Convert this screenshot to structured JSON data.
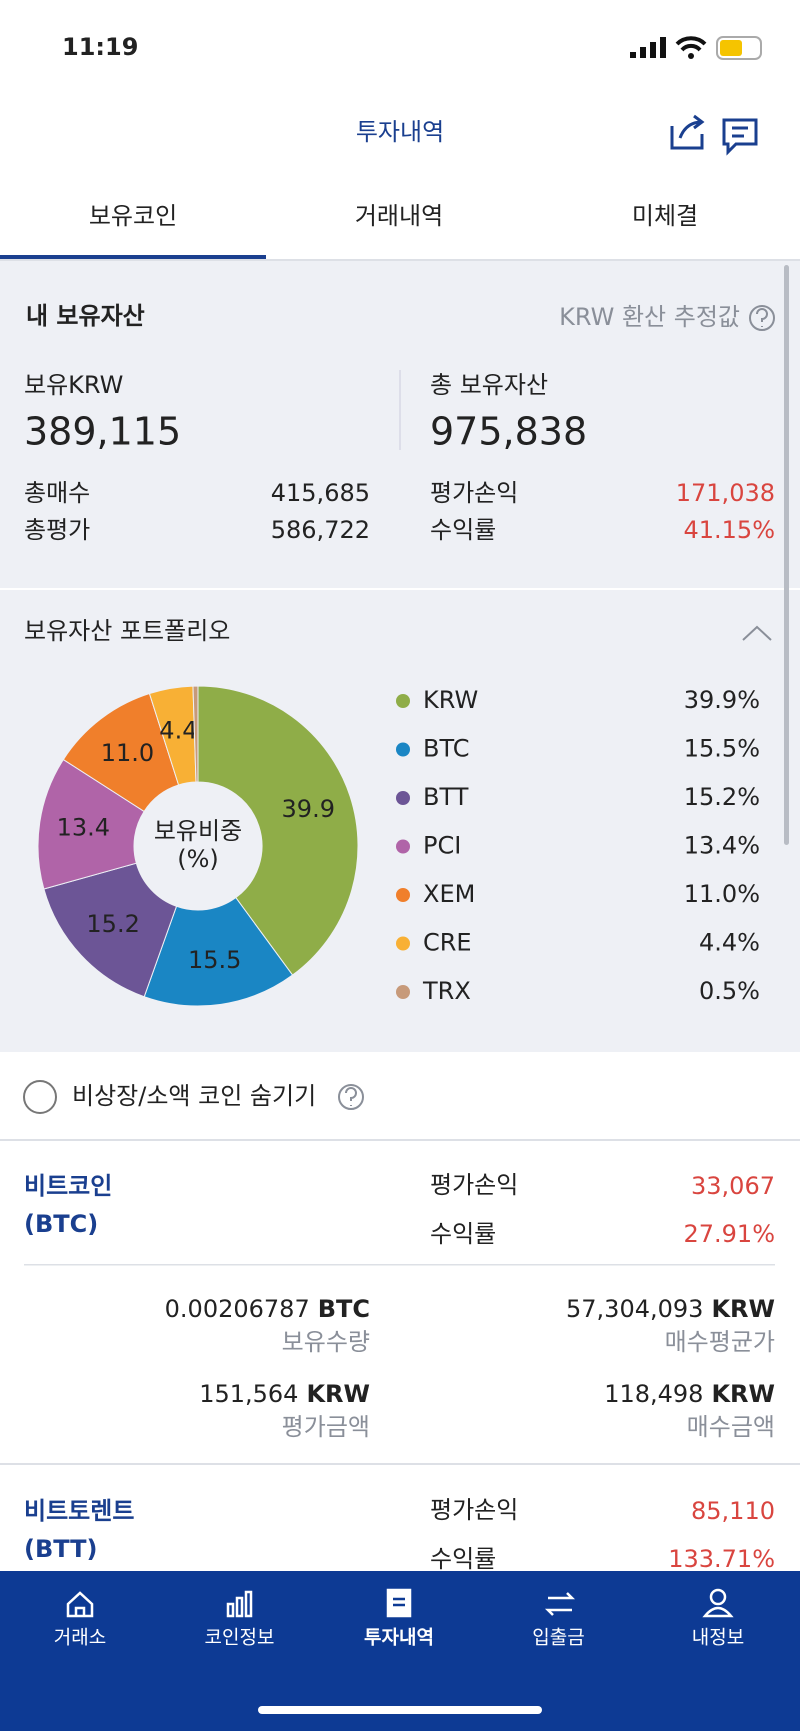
{
  "status_bar": {
    "time": "11:19"
  },
  "header": {
    "title": "투자내역"
  },
  "tabs": [
    "보유코인",
    "거래내역",
    "미체결"
  ],
  "summary": {
    "title": "내 보유자산",
    "note": "KRW 환산 추정값",
    "krw_label": "보유KRW",
    "krw_value": "389,115",
    "total_label": "총 보유자산",
    "total_value": "975,838",
    "rows_left": [
      [
        "총매수",
        "415,685"
      ],
      [
        "총평가",
        "586,722"
      ]
    ],
    "rows_right": [
      [
        "평가손익",
        "171,038"
      ],
      [
        "수익률",
        "41.15%"
      ]
    ]
  },
  "chart_data": {
    "type": "pie",
    "title": "보유자산 포트폴리오",
    "center_label": [
      "보유비중",
      "(%)"
    ],
    "categories": [
      "KRW",
      "BTC",
      "BTT",
      "PCI",
      "XEM",
      "CRE",
      "TRX"
    ],
    "values": [
      39.9,
      15.5,
      15.2,
      13.4,
      11.0,
      4.4,
      0.5
    ],
    "value_labels": [
      "39.9%",
      "15.5%",
      "15.2%",
      "13.4%",
      "11.0%",
      "4.4%",
      "0.5%"
    ],
    "slice_labels": [
      "39.9",
      "15.5",
      "15.2",
      "13.4",
      "11.0",
      "4.4",
      null
    ],
    "colors": [
      "#8fad48",
      "#1a86c4",
      "#6c5596",
      "#b064a8",
      "#f07f2b",
      "#f8b035",
      "#c79a7a"
    ]
  },
  "filter": {
    "label": "비상장/소액 코인 숨기기"
  },
  "coins": [
    {
      "name": "비트코인",
      "symbol": "(BTC)",
      "pl_label": "평가손익",
      "pl": "33,067",
      "rate_label": "수익률",
      "rate": "27.91%",
      "qty": "0.00206787",
      "qty_unit": "BTC",
      "qty_label": "보유수량",
      "avg": "57,304,093",
      "avg_unit": "KRW",
      "avg_label": "매수평균가",
      "eval": "151,564",
      "eval_unit": "KRW",
      "eval_label": "평가금액",
      "buy": "118,498",
      "buy_unit": "KRW",
      "buy_label": "매수금액"
    },
    {
      "name": "비트토렌트",
      "symbol": "(BTT)",
      "pl_label": "평가손익",
      "pl": "85,110",
      "rate_label": "수익률",
      "rate": "133.71%"
    }
  ],
  "nav": [
    "거래소",
    "코인정보",
    "투자내역",
    "입출금",
    "내정보"
  ]
}
